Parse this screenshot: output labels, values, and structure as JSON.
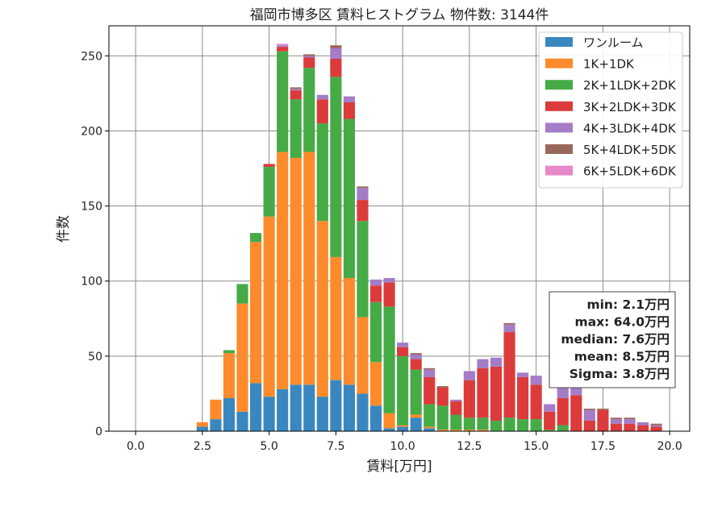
{
  "chart_data": {
    "type": "bar",
    "stacked": true,
    "title": "福岡市博多区 賃料ヒストグラム  物件数: 3144件",
    "xlabel": "賃料[万円]",
    "ylabel": "件数",
    "xlim": [
      -1.0,
      20.75
    ],
    "ylim": [
      0,
      270
    ],
    "xticks": [
      0.0,
      2.5,
      5.0,
      7.5,
      10.0,
      12.5,
      15.0,
      17.5,
      20.0
    ],
    "xtick_labels": [
      "0.0",
      "2.5",
      "5.0",
      "7.5",
      "10.0",
      "12.5",
      "15.0",
      "17.5",
      "20.0"
    ],
    "yticks": [
      0,
      50,
      100,
      150,
      200,
      250
    ],
    "ytick_labels": [
      "0",
      "50",
      "100",
      "150",
      "200",
      "250"
    ],
    "grid": true,
    "legend_position": "top-right",
    "bin_width": 0.5,
    "x": [
      2.5,
      3.0,
      3.5,
      4.0,
      4.5,
      5.0,
      5.5,
      6.0,
      6.5,
      7.0,
      7.5,
      8.0,
      8.5,
      9.0,
      9.5,
      10.0,
      10.5,
      11.0,
      11.5,
      12.0,
      12.5,
      13.0,
      13.5,
      14.0,
      14.5,
      15.0,
      15.5,
      16.0,
      16.5,
      17.0,
      17.5,
      18.0,
      18.5,
      19.0,
      19.5
    ],
    "series": [
      {
        "name": "ワンルーム",
        "color": "#3a87c0",
        "values": [
          3,
          8,
          22,
          13,
          32,
          23,
          28,
          31,
          31,
          23,
          34,
          31,
          25,
          17,
          2,
          3,
          9,
          2,
          0,
          0,
          0,
          0,
          0,
          0,
          0,
          0,
          0,
          0,
          0,
          0,
          0,
          0,
          0,
          0,
          0
        ]
      },
      {
        "name": "1K+1DK",
        "color": "#fd8b2b",
        "values": [
          3,
          13,
          30,
          72,
          94,
          120,
          158,
          151,
          155,
          117,
          82,
          71,
          51,
          29,
          10,
          1,
          2,
          1,
          1,
          1,
          1,
          1,
          0,
          0,
          0,
          0,
          0,
          0,
          0,
          0,
          0,
          0,
          0,
          0,
          0
        ]
      },
      {
        "name": "2K+1LDK+2DK",
        "color": "#46ab46",
        "values": [
          0,
          0,
          2,
          13,
          6,
          33,
          67,
          39,
          56,
          65,
          120,
          106,
          64,
          40,
          71,
          46,
          30,
          15,
          16,
          10,
          8,
          8,
          7,
          9,
          8,
          8,
          1,
          4,
          0,
          0,
          0,
          0,
          0,
          0,
          0
        ]
      },
      {
        "name": "3K+2LDK+3DK",
        "color": "#db3b3b",
        "values": [
          0,
          0,
          0,
          0,
          0,
          2,
          3,
          6,
          7,
          16,
          12,
          11,
          14,
          11,
          16,
          6,
          7,
          18,
          12,
          9,
          25,
          33,
          36,
          57,
          28,
          23,
          12,
          18,
          24,
          7,
          14,
          5,
          5,
          4,
          3
        ]
      },
      {
        "name": "4K+3LDK+4DK",
        "color": "#a47cc8",
        "values": [
          0,
          0,
          0,
          0,
          0,
          0,
          1,
          1,
          1,
          3,
          7,
          4,
          8,
          4,
          3,
          3,
          3,
          5,
          0,
          1,
          6,
          6,
          6,
          5,
          3,
          6,
          5,
          7,
          6,
          7,
          0,
          3,
          3,
          2,
          1
        ]
      },
      {
        "name": "5K+4LDK+5DK",
        "color": "#98685a",
        "values": [
          0,
          0,
          0,
          0,
          0,
          0,
          0,
          1,
          1,
          0,
          2,
          0,
          1,
          0,
          0,
          0,
          1,
          1,
          1,
          0,
          0,
          0,
          0,
          1,
          0,
          0,
          0,
          0,
          0,
          1,
          1,
          1,
          1,
          0,
          1
        ]
      },
      {
        "name": "6K+5LDK+6DK",
        "color": "#e788c9",
        "values": [
          0,
          0,
          0,
          0,
          0,
          0,
          1,
          0,
          0,
          0,
          0,
          0,
          0,
          0,
          0,
          0,
          0,
          0,
          0,
          0,
          0,
          0,
          0,
          0,
          0,
          0,
          0,
          0,
          0,
          0,
          0,
          0,
          0,
          0,
          0
        ]
      }
    ],
    "stats": [
      "min: 2.1万円",
      "max: 64.0万円",
      "median: 7.6万円",
      "mean: 8.5万円",
      "Sigma: 3.8万円"
    ]
  }
}
